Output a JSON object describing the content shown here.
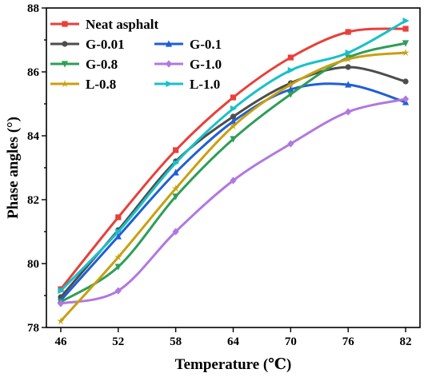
{
  "chart_data": {
    "type": "line",
    "title": "",
    "xlabel": "Temperature (℃)",
    "ylabel": "Phase angles (°)",
    "x": [
      46,
      52,
      58,
      64,
      70,
      76,
      82
    ],
    "x_tick_labels": [
      "46",
      "52",
      "58",
      "64",
      "70",
      "76",
      "82"
    ],
    "y_tick_labels": [
      "78",
      "80",
      "82",
      "84",
      "86",
      "88"
    ],
    "xlim": [
      44.5,
      83.5
    ],
    "ylim": [
      78,
      88
    ],
    "y_ticks": [
      78,
      80,
      82,
      84,
      86,
      88
    ],
    "grid": false,
    "legend_position": "top-left",
    "series": [
      {
        "name": "Neat asphalt",
        "color": "#e8403a",
        "marker": "square",
        "values": [
          79.2,
          81.45,
          83.55,
          85.2,
          86.45,
          87.25,
          87.35
        ]
      },
      {
        "name": "G-0.01",
        "color": "#4d4d4d",
        "marker": "circle",
        "values": [
          78.95,
          81.05,
          83.2,
          84.6,
          85.65,
          86.15,
          85.7
        ]
      },
      {
        "name": "G-0.1",
        "color": "#1f5fd6",
        "marker": "triangle-up",
        "values": [
          78.85,
          80.85,
          82.85,
          84.45,
          85.45,
          85.6,
          85.05
        ]
      },
      {
        "name": "G-0.8",
        "color": "#2e9e58",
        "marker": "triangle-down",
        "values": [
          78.8,
          79.9,
          82.1,
          83.9,
          85.3,
          86.45,
          86.9
        ]
      },
      {
        "name": "G-1.0",
        "color": "#b078e0",
        "marker": "diamond",
        "values": [
          78.75,
          79.15,
          81.0,
          82.6,
          83.75,
          84.75,
          85.15
        ]
      },
      {
        "name": "L-0.8",
        "color": "#c8a010",
        "marker": "star",
        "values": [
          78.2,
          80.2,
          82.35,
          84.3,
          85.6,
          86.4,
          86.6
        ]
      },
      {
        "name": "L-1.0",
        "color": "#19c0c8",
        "marker": "triangle-right",
        "values": [
          79.15,
          81.0,
          83.15,
          84.85,
          86.05,
          86.6,
          87.6
        ]
      }
    ]
  }
}
